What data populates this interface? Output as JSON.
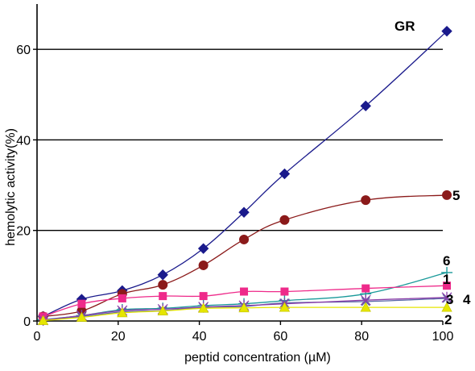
{
  "chart_data": {
    "type": "line",
    "xlabel": "peptid concentration (µM)",
    "ylabel": "hemolytic activity(%)",
    "xlim": [
      0,
      100
    ],
    "ylim": [
      0,
      70
    ],
    "xticks": [
      0,
      20,
      40,
      60,
      80,
      100
    ],
    "yticks": [
      0,
      20,
      40,
      60
    ],
    "x_tick_labels": [
      "0",
      "20",
      "40",
      "60",
      "80",
      "100"
    ],
    "y_tick_labels": [
      "0",
      "20",
      "40",
      "60"
    ],
    "grid": "horizontal lines at 20, 40, 60",
    "legend": "none; series labels printed beside line ends",
    "series": [
      {
        "name": "GR",
        "color": "#1a1a8c",
        "marker": "diamond",
        "x": [
          1.5,
          11,
          21,
          31,
          41,
          51,
          61,
          81,
          101
        ],
        "y": [
          1.0,
          4.8,
          6.7,
          10.2,
          16.0,
          24.0,
          32.5,
          47.5,
          64.0
        ]
      },
      {
        "name": "5",
        "color": "#8b1a1a",
        "marker": "circle",
        "x": [
          1.5,
          11,
          21,
          31,
          41,
          51,
          61,
          81,
          101
        ],
        "y": [
          1.0,
          2.2,
          6.0,
          8.0,
          12.3,
          18.0,
          22.3,
          26.7,
          27.8
        ]
      },
      {
        "name": "6",
        "color": "#1a9a9a",
        "marker": "plus",
        "x": [
          1.5,
          11,
          21,
          31,
          41,
          51,
          61,
          81,
          101
        ],
        "y": [
          0.3,
          1.2,
          2.5,
          2.8,
          3.4,
          3.8,
          4.5,
          6.0,
          10.7
        ]
      },
      {
        "name": "1",
        "color": "#ee2a8a",
        "marker": "square",
        "x": [
          1.5,
          11,
          21,
          31,
          41,
          51,
          61,
          81,
          101
        ],
        "y": [
          1.0,
          3.8,
          5.0,
          5.5,
          5.5,
          6.5,
          6.5,
          7.2,
          7.8
        ]
      },
      {
        "name": "3",
        "color": "#5a6aa8",
        "marker": "x",
        "x": [
          1.5,
          11,
          21,
          31,
          41,
          51,
          61,
          81,
          101
        ],
        "y": [
          0.2,
          1.0,
          2.0,
          2.3,
          3.0,
          3.2,
          4.0,
          4.3,
          5.0
        ]
      },
      {
        "name": "4",
        "color": "#8a3ea8",
        "marker": "star",
        "x": [
          1.5,
          11,
          21,
          31,
          41,
          51,
          61,
          81,
          101
        ],
        "y": [
          0.2,
          1.2,
          2.3,
          2.6,
          3.1,
          3.4,
          3.8,
          4.6,
          5.2
        ]
      },
      {
        "name": "2",
        "color": "#e6e600",
        "marker": "triangle",
        "x": [
          1.5,
          11,
          21,
          31,
          41,
          51,
          61,
          81,
          101
        ],
        "y": [
          0.1,
          0.8,
          1.8,
          2.2,
          2.8,
          2.9,
          3.0,
          3.0,
          3.0
        ]
      }
    ],
    "series_tags": [
      {
        "name": "GR",
        "text": "GR"
      },
      {
        "name": "5",
        "text": "5"
      },
      {
        "name": "6",
        "text": "6"
      },
      {
        "name": "1",
        "text": "1"
      },
      {
        "name": "3",
        "text": "3"
      },
      {
        "name": "4",
        "text": "4"
      },
      {
        "name": "2",
        "text": "2"
      }
    ]
  }
}
